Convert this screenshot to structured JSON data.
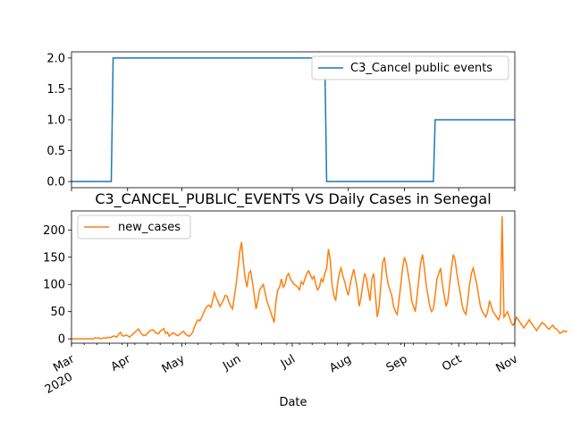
{
  "chart_data": [
    {
      "type": "line",
      "panel": "top",
      "series": [
        {
          "name": "C3_Cancel public events",
          "color": "#1f77b4",
          "points": [
            [
              "2020-03-01",
              0
            ],
            [
              "2020-03-23",
              0
            ],
            [
              "2020-03-24",
              2
            ],
            [
              "2020-07-19",
              2
            ],
            [
              "2020-07-20",
              0
            ],
            [
              "2020-09-17",
              0
            ],
            [
              "2020-09-18",
              1
            ],
            [
              "2020-11-01",
              1
            ]
          ]
        }
      ],
      "ylim": [
        -0.1,
        2.1
      ],
      "yticks": [
        "0.0",
        "0.5",
        "1.0",
        "1.5",
        "2.0"
      ],
      "yticks_values": [
        0,
        0.5,
        1.0,
        1.5,
        2.0
      ],
      "legend_placement": "upper-right"
    },
    {
      "type": "line",
      "panel": "bottom",
      "title": "C3_CANCEL_PUBLIC_EVENTS VS Daily Cases in Senegal",
      "xlabel": "Date",
      "series": [
        {
          "name": "new_cases",
          "color": "#ff7f0e",
          "start_date": "2020-03-01",
          "values": [
            0,
            0,
            0,
            0,
            0,
            0,
            0,
            0,
            0,
            0,
            0,
            0,
            0,
            2,
            1,
            2,
            0,
            1,
            2,
            1,
            3,
            2,
            3,
            5,
            5,
            3,
            8,
            12,
            6,
            5,
            7,
            6,
            3,
            6,
            9,
            12,
            15,
            18,
            13,
            8,
            6,
            7,
            10,
            14,
            16,
            17,
            13,
            10,
            9,
            14,
            16,
            19,
            10,
            12,
            5,
            8,
            11,
            10,
            7,
            6,
            9,
            12,
            14,
            9,
            6,
            5,
            8,
            12,
            22,
            30,
            35,
            33,
            40,
            48,
            55,
            60,
            62,
            58,
            70,
            85,
            75,
            68,
            60,
            65,
            72,
            80,
            78,
            68,
            60,
            55,
            78,
            100,
            130,
            160,
            178,
            140,
            110,
            95,
            120,
            125,
            105,
            80,
            55,
            70,
            90,
            95,
            100,
            85,
            70,
            60,
            50,
            40,
            30,
            70,
            90,
            95,
            110,
            95,
            100,
            115,
            120,
            110,
            105,
            100,
            98,
            95,
            90,
            105,
            100,
            110,
            120,
            125,
            118,
            110,
            115,
            100,
            90,
            95,
            110,
            105,
            120,
            130,
            165,
            145,
            100,
            80,
            70,
            100,
            120,
            130,
            115,
            105,
            90,
            80,
            100,
            115,
            128,
            110,
            90,
            60,
            75,
            100,
            120,
            110,
            90,
            70,
            110,
            120,
            80,
            40,
            60,
            100,
            140,
            150,
            120,
            100,
            90,
            80,
            60,
            50,
            45,
            70,
            100,
            130,
            150,
            140,
            120,
            100,
            70,
            60,
            50,
            80,
            110,
            140,
            155,
            130,
            100,
            80,
            60,
            50,
            55,
            80,
            110,
            120,
            130,
            100,
            80,
            60,
            70,
            100,
            130,
            155,
            145,
            120,
            100,
            80,
            60,
            50,
            45,
            70,
            100,
            120,
            130,
            115,
            100,
            80,
            60,
            50,
            45,
            40,
            50,
            70,
            60,
            50,
            45,
            40,
            35,
            45,
            225,
            40,
            45,
            50,
            40,
            30,
            25,
            30,
            40,
            35,
            30,
            25,
            20,
            25,
            30,
            35,
            30,
            25,
            20,
            15,
            20,
            25,
            30,
            28,
            25,
            20,
            18,
            22,
            25,
            20,
            18,
            15,
            10,
            12,
            15,
            13,
            15
          ]
        }
      ],
      "ylim": [
        -8,
        235
      ],
      "yticks": [
        "0",
        "50",
        "100",
        "150",
        "200"
      ],
      "yticks_values": [
        0,
        50,
        100,
        150,
        200
      ],
      "xlim": [
        "2020-03-01",
        "2020-11-01"
      ],
      "xticks": [
        {
          "date": "2020-03-01",
          "label": "Mar",
          "sublabel": "2020"
        },
        {
          "date": "2020-04-01",
          "label": "Apr",
          "sublabel": ""
        },
        {
          "date": "2020-05-01",
          "label": "May",
          "sublabel": ""
        },
        {
          "date": "2020-06-01",
          "label": "Jun",
          "sublabel": ""
        },
        {
          "date": "2020-07-01",
          "label": "Jul",
          "sublabel": ""
        },
        {
          "date": "2020-08-01",
          "label": "Aug",
          "sublabel": ""
        },
        {
          "date": "2020-09-01",
          "label": "Sep",
          "sublabel": ""
        },
        {
          "date": "2020-10-01",
          "label": "Oct",
          "sublabel": ""
        },
        {
          "date": "2020-11-01",
          "label": "Nov",
          "sublabel": ""
        }
      ],
      "legend_placement": "upper-left"
    }
  ]
}
